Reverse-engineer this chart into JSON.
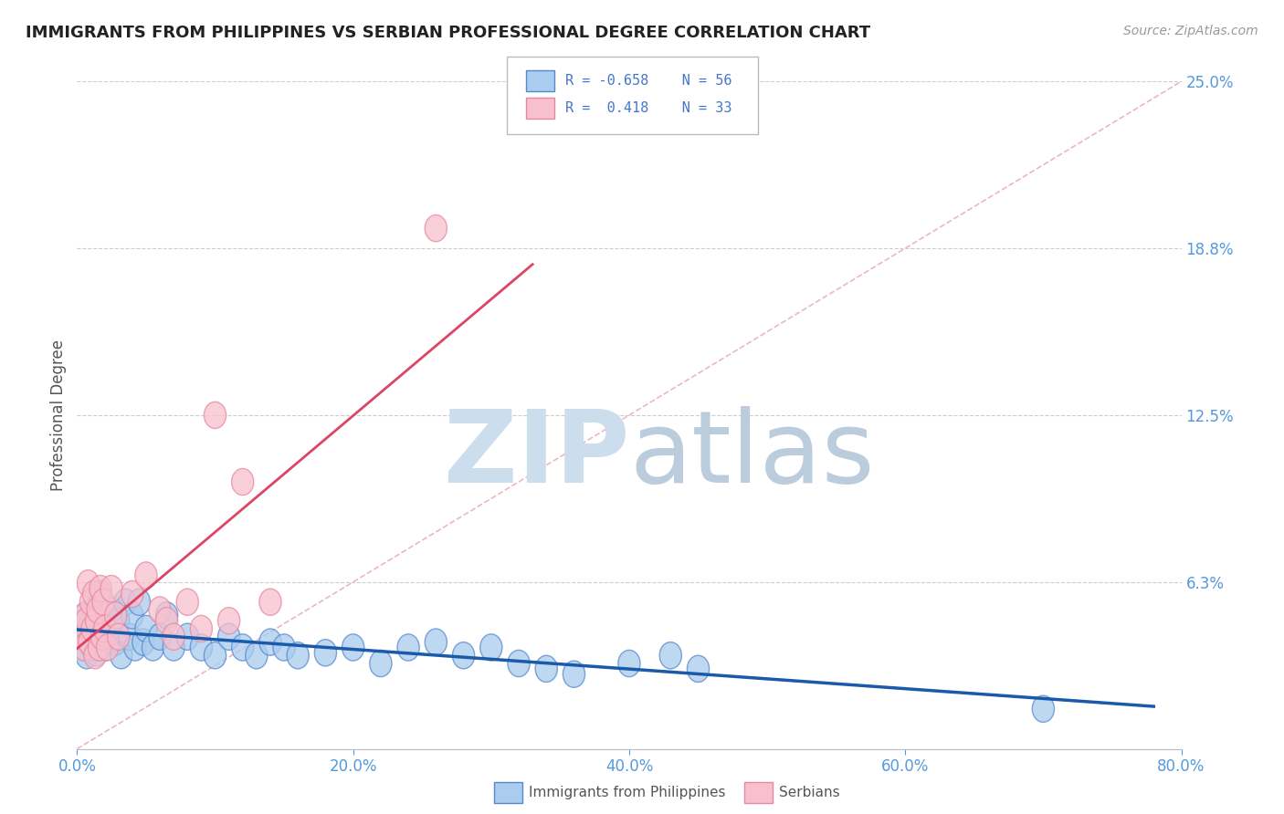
{
  "title": "IMMIGRANTS FROM PHILIPPINES VS SERBIAN PROFESSIONAL DEGREE CORRELATION CHART",
  "source": "Source: ZipAtlas.com",
  "ylabel": "Professional Degree",
  "xlim": [
    0.0,
    0.8
  ],
  "ylim": [
    0.0,
    0.25
  ],
  "yticks": [
    0.0,
    0.0625,
    0.125,
    0.1875,
    0.25
  ],
  "ytick_labels": [
    "",
    "6.3%",
    "12.5%",
    "18.8%",
    "25.0%"
  ],
  "xtick_labels": [
    "0.0%",
    "20.0%",
    "40.0%",
    "60.0%",
    "80.0%"
  ],
  "xticks": [
    0.0,
    0.2,
    0.4,
    0.6,
    0.8
  ],
  "blue_fill": "#aaccee",
  "blue_edge": "#5588cc",
  "pink_fill": "#f8c0ce",
  "pink_edge": "#e888a0",
  "blue_line_color": "#1a5aaa",
  "pink_line_color": "#dd4466",
  "diag_line_color": "#e8b0bc",
  "tick_color": "#5599dd",
  "grid_color": "#cccccc",
  "legend_R_blue": "R = -0.658",
  "legend_N_blue": "N = 56",
  "legend_R_pink": "R =  0.418",
  "legend_N_pink": "N = 33",
  "legend_text_color": "#4477cc",
  "blue_points": [
    [
      0.003,
      0.042
    ],
    [
      0.005,
      0.038
    ],
    [
      0.006,
      0.05
    ],
    [
      0.007,
      0.035
    ],
    [
      0.008,
      0.045
    ],
    [
      0.009,
      0.04
    ],
    [
      0.01,
      0.048
    ],
    [
      0.011,
      0.038
    ],
    [
      0.012,
      0.052
    ],
    [
      0.013,
      0.044
    ],
    [
      0.014,
      0.036
    ],
    [
      0.015,
      0.05
    ],
    [
      0.016,
      0.042
    ],
    [
      0.017,
      0.058
    ],
    [
      0.018,
      0.04
    ],
    [
      0.019,
      0.046
    ],
    [
      0.02,
      0.038
    ],
    [
      0.022,
      0.044
    ],
    [
      0.025,
      0.052
    ],
    [
      0.028,
      0.04
    ],
    [
      0.03,
      0.048
    ],
    [
      0.032,
      0.035
    ],
    [
      0.035,
      0.055
    ],
    [
      0.038,
      0.042
    ],
    [
      0.04,
      0.05
    ],
    [
      0.042,
      0.038
    ],
    [
      0.045,
      0.055
    ],
    [
      0.048,
      0.04
    ],
    [
      0.05,
      0.045
    ],
    [
      0.055,
      0.038
    ],
    [
      0.06,
      0.042
    ],
    [
      0.065,
      0.05
    ],
    [
      0.07,
      0.038
    ],
    [
      0.08,
      0.042
    ],
    [
      0.09,
      0.038
    ],
    [
      0.1,
      0.035
    ],
    [
      0.11,
      0.042
    ],
    [
      0.12,
      0.038
    ],
    [
      0.13,
      0.035
    ],
    [
      0.14,
      0.04
    ],
    [
      0.15,
      0.038
    ],
    [
      0.16,
      0.035
    ],
    [
      0.18,
      0.036
    ],
    [
      0.2,
      0.038
    ],
    [
      0.22,
      0.032
    ],
    [
      0.24,
      0.038
    ],
    [
      0.26,
      0.04
    ],
    [
      0.28,
      0.035
    ],
    [
      0.3,
      0.038
    ],
    [
      0.32,
      0.032
    ],
    [
      0.34,
      0.03
    ],
    [
      0.36,
      0.028
    ],
    [
      0.4,
      0.032
    ],
    [
      0.43,
      0.035
    ],
    [
      0.45,
      0.03
    ],
    [
      0.7,
      0.015
    ]
  ],
  "pink_points": [
    [
      0.003,
      0.042
    ],
    [
      0.005,
      0.038
    ],
    [
      0.006,
      0.05
    ],
    [
      0.007,
      0.048
    ],
    [
      0.008,
      0.062
    ],
    [
      0.009,
      0.04
    ],
    [
      0.01,
      0.055
    ],
    [
      0.011,
      0.045
    ],
    [
      0.012,
      0.058
    ],
    [
      0.013,
      0.035
    ],
    [
      0.014,
      0.048
    ],
    [
      0.015,
      0.052
    ],
    [
      0.016,
      0.038
    ],
    [
      0.017,
      0.06
    ],
    [
      0.018,
      0.042
    ],
    [
      0.019,
      0.055
    ],
    [
      0.02,
      0.045
    ],
    [
      0.022,
      0.038
    ],
    [
      0.025,
      0.06
    ],
    [
      0.028,
      0.05
    ],
    [
      0.03,
      0.042
    ],
    [
      0.04,
      0.058
    ],
    [
      0.05,
      0.065
    ],
    [
      0.06,
      0.052
    ],
    [
      0.065,
      0.048
    ],
    [
      0.07,
      0.042
    ],
    [
      0.08,
      0.055
    ],
    [
      0.09,
      0.045
    ],
    [
      0.1,
      0.125
    ],
    [
      0.11,
      0.048
    ],
    [
      0.12,
      0.1
    ],
    [
      0.14,
      0.055
    ],
    [
      0.26,
      0.195
    ]
  ],
  "watermark_zip": "ZIP",
  "watermark_atlas": "atlas",
  "watermark_color_zip": "#ccdded",
  "watermark_color_atlas": "#bbccdd"
}
